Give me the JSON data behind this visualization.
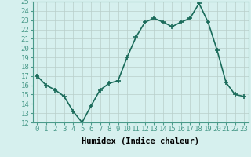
{
  "x": [
    0,
    1,
    2,
    3,
    4,
    5,
    6,
    7,
    8,
    9,
    10,
    11,
    12,
    13,
    14,
    15,
    16,
    17,
    18,
    19,
    20,
    21,
    22,
    23
  ],
  "y": [
    17,
    16,
    15.5,
    14.8,
    13.2,
    12,
    13.8,
    15.5,
    16.2,
    16.5,
    19,
    21.2,
    22.8,
    23.2,
    22.8,
    22.3,
    22.8,
    23.2,
    24.8,
    22.8,
    19.8,
    16.3,
    15,
    14.8
  ],
  "line_color": "#1a6b5a",
  "marker": "+",
  "marker_size": 4,
  "marker_lw": 1.2,
  "bg_color": "#d6f0ee",
  "grid_color": "#b8ceca",
  "xlabel": "Humidex (Indice chaleur)",
  "xlabel_fontsize": 7.5,
  "ylim": [
    12,
    25
  ],
  "xlim": [
    -0.5,
    23.5
  ],
  "yticks": [
    12,
    13,
    14,
    15,
    16,
    17,
    18,
    19,
    20,
    21,
    22,
    23,
    24,
    25
  ],
  "xticks": [
    0,
    1,
    2,
    3,
    4,
    5,
    6,
    7,
    8,
    9,
    10,
    11,
    12,
    13,
    14,
    15,
    16,
    17,
    18,
    19,
    20,
    21,
    22,
    23
  ],
  "tick_fontsize": 6.5,
  "linewidth": 1.2,
  "spine_color": "#4a9a8a"
}
